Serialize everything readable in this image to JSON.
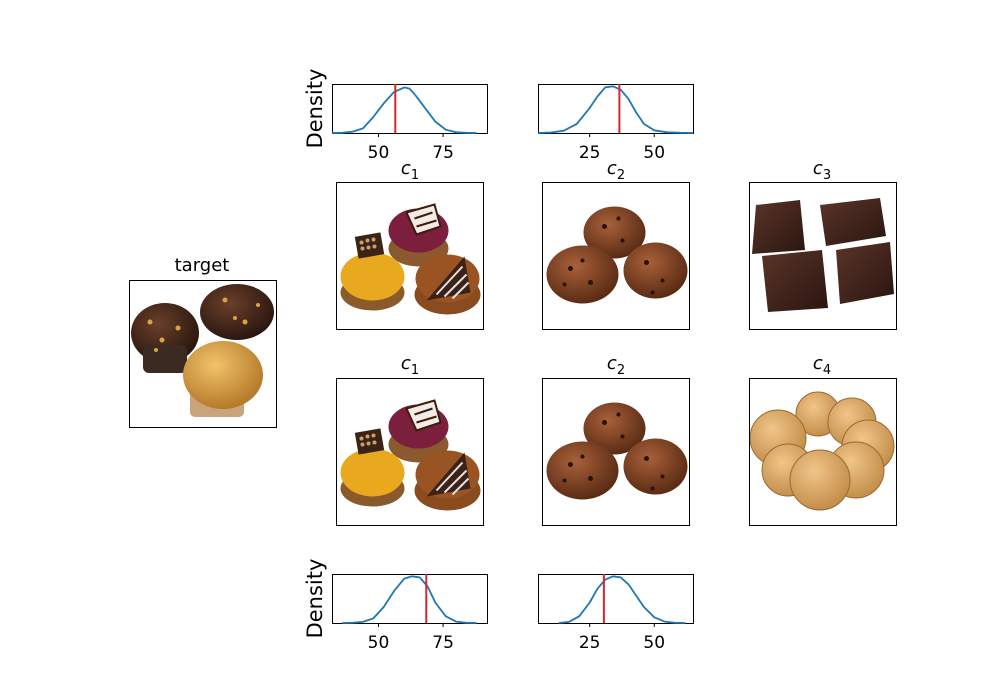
{
  "target_title": "target",
  "rows": [
    {
      "titles": [
        {
          "main": "c",
          "sub": "1"
        },
        {
          "main": "c",
          "sub": "2"
        },
        {
          "main": "c",
          "sub": "3"
        }
      ]
    },
    {
      "titles": [
        {
          "main": "c",
          "sub": "1"
        },
        {
          "main": "c",
          "sub": "2"
        },
        {
          "main": "c",
          "sub": "4"
        }
      ]
    }
  ],
  "images": {
    "target": "muffins",
    "c1": "pastries",
    "c2": "rock-cakes",
    "c3": "chocolate",
    "c4": "biscuits"
  },
  "colors": {
    "density_line": "#1f77b4",
    "marker": "#d62728"
  },
  "chart_data": [
    {
      "type": "line",
      "position": "top-left",
      "ylabel": "Density",
      "xlim": [
        32,
        92
      ],
      "xticks": [
        50,
        75
      ],
      "x": [
        32,
        36,
        40,
        44,
        48,
        52,
        56,
        60,
        62,
        64,
        68,
        72,
        76,
        80,
        84,
        88
      ],
      "y": [
        0,
        0.001,
        0.006,
        0.02,
        0.07,
        0.13,
        0.18,
        0.2,
        0.195,
        0.17,
        0.11,
        0.05,
        0.015,
        0.003,
        0.0008,
        0
      ],
      "ylim": [
        0,
        0.215
      ],
      "marker_x": 56.5
    },
    {
      "type": "line",
      "position": "top-right",
      "ylabel": "",
      "xlim": [
        5,
        65
      ],
      "xticks": [
        25,
        50
      ],
      "x": [
        5,
        10,
        15,
        20,
        25,
        28,
        31,
        34,
        37,
        40,
        43,
        46,
        50,
        55,
        60,
        65
      ],
      "y": [
        0,
        0.002,
        0.01,
        0.04,
        0.11,
        0.16,
        0.2,
        0.205,
        0.19,
        0.15,
        0.09,
        0.04,
        0.012,
        0.003,
        0.0008,
        0
      ],
      "ylim": [
        0,
        0.215
      ],
      "marker_x": 36.5
    },
    {
      "type": "line",
      "position": "bottom-left",
      "ylabel": "Density",
      "xlim": [
        32,
        92
      ],
      "xticks": [
        50,
        75
      ],
      "x": [
        36,
        40,
        44,
        48,
        52,
        56,
        60,
        63,
        66,
        69,
        72,
        76,
        80,
        84,
        88
      ],
      "y": [
        0,
        0.001,
        0.005,
        0.02,
        0.07,
        0.14,
        0.195,
        0.205,
        0.2,
        0.16,
        0.09,
        0.03,
        0.006,
        0.001,
        0
      ],
      "ylim": [
        0,
        0.215
      ],
      "marker_x": 68.5
    },
    {
      "type": "line",
      "position": "bottom-right",
      "ylabel": "",
      "xlim": [
        5,
        65
      ],
      "xticks": [
        25,
        50
      ],
      "x": [
        13,
        17,
        21,
        25,
        28,
        31,
        34,
        37,
        40,
        43,
        46,
        50,
        54,
        58,
        62
      ],
      "y": [
        0,
        0.005,
        0.03,
        0.09,
        0.15,
        0.19,
        0.205,
        0.2,
        0.17,
        0.12,
        0.07,
        0.025,
        0.006,
        0.001,
        0
      ],
      "ylim": [
        0,
        0.215
      ],
      "marker_x": 30.5
    }
  ]
}
